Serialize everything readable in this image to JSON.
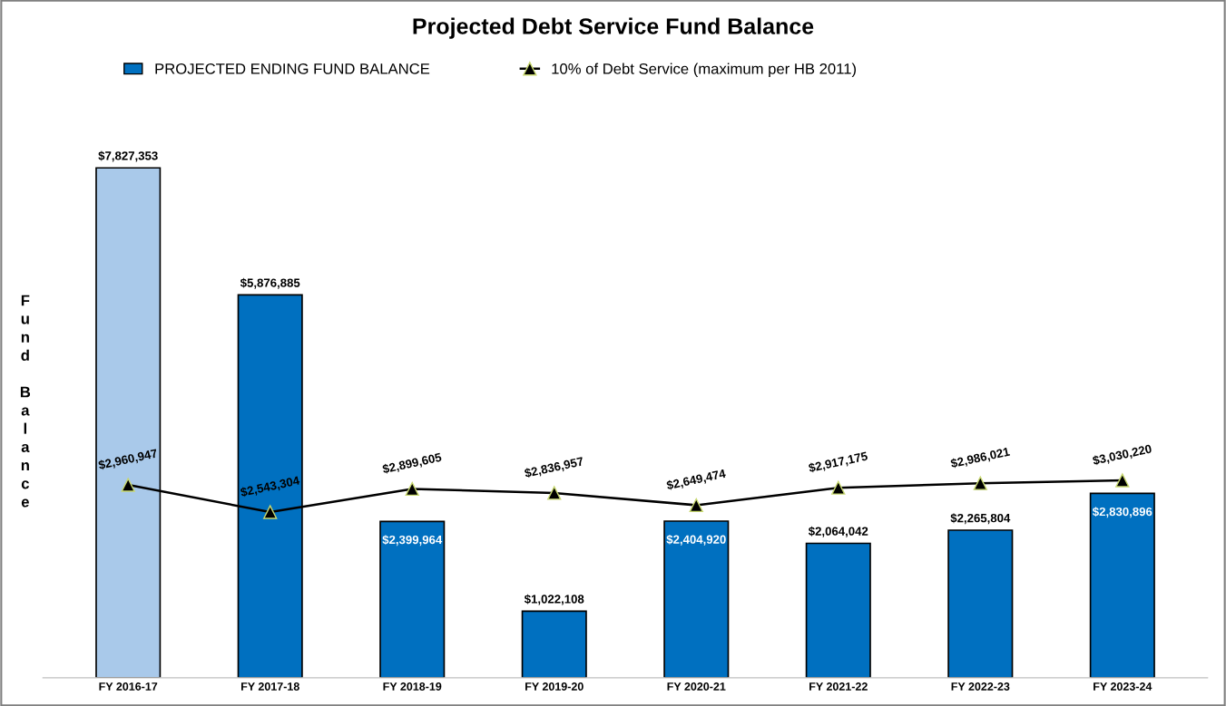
{
  "chart_data": {
    "type": "bar",
    "title": "Projected Debt Service Fund Balance",
    "ylabel": "Fund Balance",
    "categories": [
      "FY 2016-17",
      "FY 2017-18",
      "FY 2018-19",
      "FY 2019-20",
      "FY 2020-21",
      "FY 2021-22",
      "FY 2022-23",
      "FY 2023-24"
    ],
    "series": [
      {
        "name": "PROJECTED ENDING FUND BALANCE",
        "color": "#0070c0",
        "colors": [
          "#a9c9ea",
          "#0070c0",
          "#0070c0",
          "#0070c0",
          "#0070c0",
          "#0070c0",
          "#0070c0",
          "#0070c0"
        ],
        "values": [
          7827353,
          5876885,
          2399964,
          1022108,
          2404920,
          2064042,
          2265804,
          2830896
        ],
        "value_labels": [
          "$7,827,353",
          "$5,876,885",
          "$2,399,964",
          "$1,022,108",
          "$2,404,920",
          "$2,064,042",
          "$2,265,804",
          "$2,830,896"
        ]
      },
      {
        "name": "10% of Debt Service (maximum per HB 2011)",
        "type": "line",
        "color": "#000000",
        "marker": "triangle",
        "values": [
          2960947,
          2543304,
          2899605,
          2836957,
          2649474,
          2917175,
          2986021,
          3030220
        ],
        "value_labels": [
          "$2,960,947",
          "$2,543,304",
          "$2,899,605",
          "$2,836,957",
          "$2,649,474",
          "$2,917,175",
          "$2,986,021",
          "$3,030,220"
        ]
      }
    ],
    "legend": "top",
    "grid": false
  }
}
